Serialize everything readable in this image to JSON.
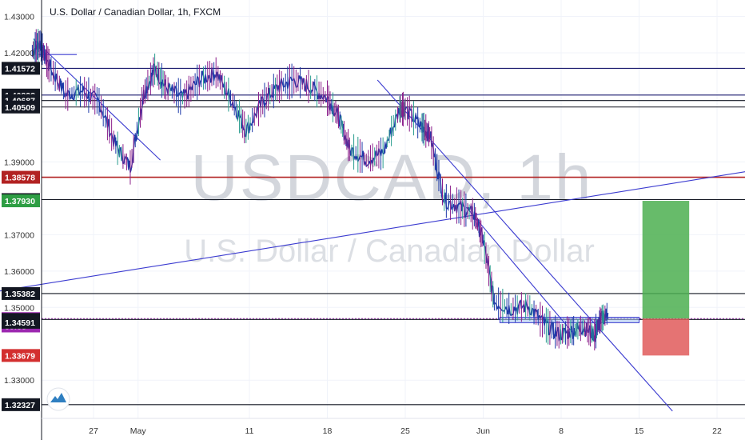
{
  "title": "U.S. Dollar / Canadian Dollar, 1h, FXCM",
  "watermark": {
    "symbol": "USDCAD, 1h",
    "name": "U.S. Dollar / Canadian Dollar"
  },
  "colors": {
    "candle": "#1e3aa8",
    "candle_alt": "#2a9d8f",
    "candle_bear": "#8a1e8a",
    "trendline": "#3b3bd0",
    "red_line": "#b22222",
    "navy": "#1a1a6e",
    "purple": "#9c27b0",
    "profit_zone": "#4caf50",
    "loss_zone": "#e05a5a"
  },
  "chart_data": {
    "type": "line",
    "title": "U.S. Dollar / Canadian Dollar, 1h, FXCM",
    "xlabel": "",
    "ylabel": "",
    "ylim": [
      1.3195,
      1.4345
    ],
    "x_ticks": [
      {
        "label": "27",
        "day": 27
      },
      {
        "label": "May",
        "day": 31
      },
      {
        "label": "11",
        "day": 41
      },
      {
        "label": "18",
        "day": 48
      },
      {
        "label": "25",
        "day": 55
      },
      {
        "label": "Jun",
        "day": 62
      },
      {
        "label": "8",
        "day": 69
      },
      {
        "label": "15",
        "day": 76
      },
      {
        "label": "22",
        "day": 83
      }
    ],
    "y_ticks": [
      1.43,
      1.42,
      1.39,
      1.37,
      1.36,
      1.35,
      1.33
    ],
    "y_tick_labels": [
      "1.43000",
      "1.42000",
      "1.39000",
      "1.37000",
      "1.36000",
      "1.35000",
      "1.33000"
    ],
    "price_series": {
      "name": "USDCAD",
      "x": [
        21.5,
        22.2,
        23,
        24.5,
        26,
        27.5,
        29,
        30.3,
        31.5,
        32.5,
        33.5,
        35,
        36.5,
        38,
        39.5,
        40.7,
        42.2,
        43.5,
        45,
        46.5,
        48,
        49,
        50,
        51.5,
        53,
        54.5,
        55,
        56.5,
        57.2,
        58.5,
        60,
        61.2,
        62,
        63,
        64.5,
        66,
        67.5,
        68.8,
        70,
        71,
        72,
        72.5,
        73.2
      ],
      "y": [
        1.4205,
        1.4225,
        1.4165,
        1.4085,
        1.4095,
        1.4065,
        1.3945,
        1.3885,
        1.4085,
        1.4155,
        1.4105,
        1.4075,
        1.4125,
        1.4145,
        1.4065,
        1.3985,
        1.4065,
        1.4105,
        1.4125,
        1.4105,
        1.4075,
        1.4025,
        1.3935,
        1.3905,
        1.3925,
        1.4045,
        1.4045,
        1.3995,
        1.3975,
        1.3795,
        1.3775,
        1.3755,
        1.3685,
        1.3515,
        1.3495,
        1.3505,
        1.3455,
        1.3425,
        1.3435,
        1.3445,
        1.3425,
        1.3465,
        1.3485
      ]
    },
    "horizontal_levels": [
      {
        "value": 1.41572,
        "label": "1.41572",
        "kind": "navy"
      },
      {
        "value": 1.40838,
        "label": "1.40838",
        "kind": "navy"
      },
      {
        "value": 1.40687,
        "label": "1.40687",
        "kind": "black"
      },
      {
        "value": 1.40509,
        "label": "1.40509",
        "kind": "black"
      },
      {
        "value": 1.38578,
        "label": "1.38578",
        "kind": "red"
      },
      {
        "value": 1.37964,
        "label": "1.37964",
        "kind": "black"
      },
      {
        "value": 1.35382,
        "label": "1.35382",
        "kind": "black"
      },
      {
        "value": 1.34693,
        "label": "1.34693",
        "kind": "purple_dotted"
      },
      {
        "value": 1.34669,
        "label": "1.34669",
        "kind": "black"
      },
      {
        "value": 1.32327,
        "label": "1.32327",
        "kind": "black"
      }
    ],
    "price_labels": [
      {
        "value": 1.41572,
        "text": "1.41572",
        "bg": "#131722",
        "fg": "#ffffff"
      },
      {
        "value": 1.40838,
        "text": "1.40838",
        "bg": "#131722",
        "fg": "#ffffff"
      },
      {
        "value": 1.40687,
        "text": "1.40687",
        "bg": "#131722",
        "fg": "#ffffff"
      },
      {
        "value": 1.40509,
        "text": "1.40509",
        "bg": "#131722",
        "fg": "#ffffff"
      },
      {
        "value": 1.38578,
        "text": "1.38578",
        "bg": "#b22222",
        "fg": "#ffffff"
      },
      {
        "value": 1.37964,
        "text": "1.37964",
        "bg": "#131722",
        "fg": "#ffffff"
      },
      {
        "value": 1.3793,
        "text": "1.37930",
        "bg": "#2e9e44",
        "fg": "#ffffff"
      },
      {
        "value": 1.35382,
        "text": "1.35382",
        "bg": "#131722",
        "fg": "#ffffff"
      },
      {
        "value": 1.34693,
        "text": "1.34693",
        "bg": "#9c27b0",
        "fg": "#ffffff"
      },
      {
        "value": 1.3449,
        "text": "55:53",
        "bg": "#9c27b0",
        "fg": "#ffffff"
      },
      {
        "value": 1.34669,
        "text": "1.34669",
        "bg": "#131722",
        "fg": "#ffffff"
      },
      {
        "value": 1.34591,
        "text": "1.34591",
        "bg": "#131722",
        "fg": "#ffffff"
      },
      {
        "value": 1.33679,
        "text": "1.33679",
        "bg": "#d32f2f",
        "fg": "#ffffff"
      },
      {
        "value": 1.32327,
        "text": "1.32327",
        "bg": "#131722",
        "fg": "#ffffff"
      }
    ],
    "trendlines": [
      {
        "x1": 21.6,
        "y1": 1.4238,
        "x2": 33.0,
        "y2": 1.3905
      },
      {
        "x1": 22,
        "y1": 1.4195,
        "x2": 25.5,
        "y2": 1.4195
      },
      {
        "x1": 17.5,
        "y1": 1.354,
        "x2": 88.0,
        "y2": 1.3885
      },
      {
        "x1": 52.5,
        "y1": 1.4125,
        "x2": 79.0,
        "y2": 1.3215
      },
      {
        "x1": 60.5,
        "y1": 1.3775,
        "x2": 70.2,
        "y2": 1.3425
      }
    ],
    "support_box": {
      "x1": 63.5,
      "x2": 76.0,
      "y_top": 1.3473,
      "y_bottom": 1.3458
    },
    "position": {
      "x1": 76.3,
      "x2": 80.5,
      "entry": 1.34693,
      "target": 1.3793,
      "stop": 1.33679
    }
  }
}
